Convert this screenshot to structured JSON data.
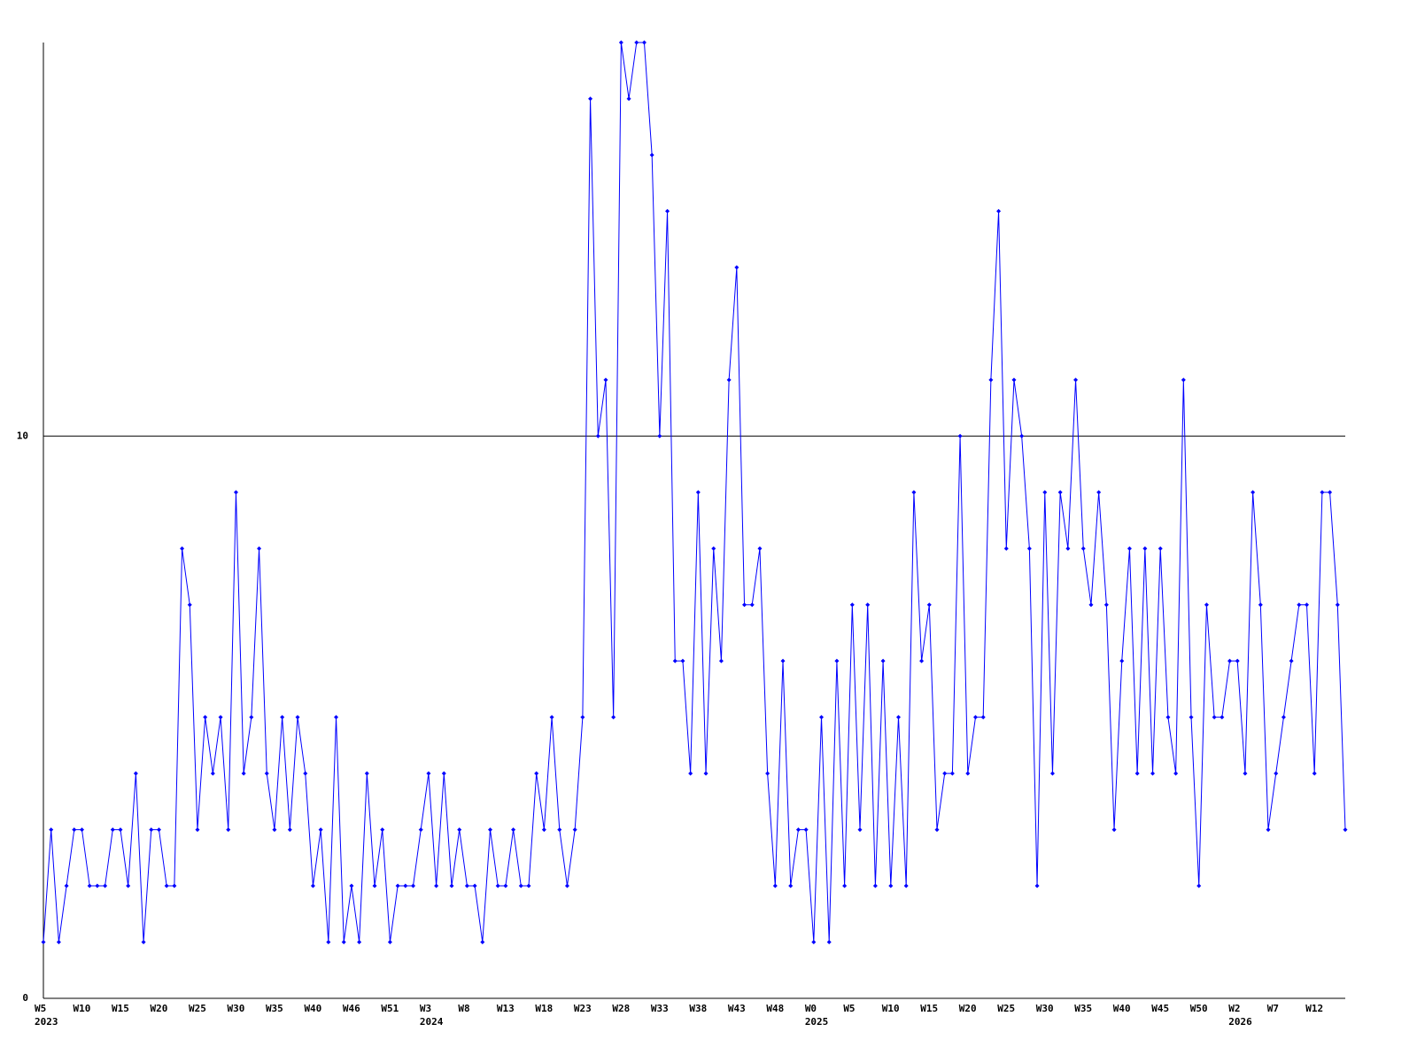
{
  "chart_data": {
    "type": "line",
    "categories": [
      "W5",
      null,
      null,
      null,
      null,
      "W10",
      null,
      null,
      null,
      null,
      "W15",
      null,
      null,
      null,
      null,
      "W20",
      null,
      null,
      null,
      null,
      "W25",
      null,
      null,
      null,
      null,
      "W30",
      null,
      null,
      null,
      null,
      "W35",
      null,
      null,
      null,
      null,
      "W40",
      null,
      null,
      null,
      null,
      "W46",
      null,
      null,
      null,
      null,
      "W51",
      null,
      null,
      null,
      null,
      "W3",
      null,
      null,
      null,
      null,
      "W8",
      null,
      null,
      null,
      null,
      "W13",
      null,
      null,
      null,
      null,
      "W18",
      null,
      null,
      null,
      null,
      "W23",
      null,
      null,
      null,
      null,
      "W28",
      null,
      null,
      null,
      null,
      "W33",
      null,
      null,
      null,
      null,
      "W38",
      null,
      null,
      null,
      null,
      "W43",
      null,
      null,
      null,
      null,
      "W48",
      null,
      null,
      null,
      null,
      "W0",
      null,
      null,
      null,
      null,
      "W5",
      null,
      null,
      null,
      null,
      "W10",
      null,
      null,
      null,
      null,
      "W15",
      null,
      null,
      null,
      null,
      "W20",
      null,
      null,
      null,
      null,
      "W25",
      null,
      null,
      null,
      null,
      "W30",
      null,
      null,
      null,
      null,
      "W35",
      null,
      null,
      null,
      null,
      "W40",
      null,
      null,
      null,
      null,
      "W45",
      null,
      null,
      null,
      null,
      "W50",
      null,
      null,
      null,
      null,
      "W2",
      null,
      null,
      null,
      null,
      "W7",
      null,
      null,
      null,
      null,
      "W12",
      null,
      null,
      null,
      null
    ],
    "years": [
      "2023",
      null,
      null,
      null,
      null,
      null,
      null,
      null,
      null,
      null,
      null,
      null,
      null,
      null,
      null,
      null,
      null,
      null,
      null,
      null,
      null,
      null,
      null,
      null,
      null,
      null,
      null,
      null,
      null,
      null,
      null,
      null,
      null,
      null,
      null,
      null,
      null,
      null,
      null,
      null,
      null,
      null,
      null,
      null,
      null,
      null,
      null,
      null,
      null,
      null,
      "2024",
      null,
      null,
      null,
      null,
      null,
      null,
      null,
      null,
      null,
      null,
      null,
      null,
      null,
      null,
      null,
      null,
      null,
      null,
      null,
      null,
      null,
      null,
      null,
      null,
      null,
      null,
      null,
      null,
      null,
      null,
      null,
      null,
      null,
      null,
      null,
      null,
      null,
      null,
      null,
      null,
      null,
      null,
      null,
      null,
      null,
      null,
      null,
      null,
      null,
      "2025",
      null,
      null,
      null,
      null,
      null,
      null,
      null,
      null,
      null,
      null,
      null,
      null,
      null,
      null,
      null,
      null,
      null,
      null,
      null,
      null,
      null,
      null,
      null,
      null,
      null,
      null,
      null,
      null,
      null,
      null,
      null,
      null,
      null,
      null,
      null,
      null,
      null,
      null,
      null,
      null,
      null,
      null,
      null,
      null,
      null,
      null,
      null,
      null,
      null,
      null,
      null,
      null,
      null,
      null,
      "2026",
      null,
      null,
      null,
      null,
      null,
      null,
      null,
      null,
      null,
      null,
      null,
      null,
      null,
      null
    ],
    "values": [
      1,
      3,
      1,
      2,
      3,
      3,
      2,
      2,
      2,
      3,
      3,
      2,
      4,
      1,
      3,
      3,
      2,
      2,
      8,
      7,
      3,
      5,
      4,
      5,
      3,
      9,
      4,
      5,
      8,
      4,
      3,
      5,
      3,
      5,
      4,
      2,
      3,
      1,
      5,
      1,
      2,
      1,
      4,
      2,
      3,
      1,
      2,
      2,
      2,
      3,
      4,
      2,
      4,
      2,
      3,
      2,
      2,
      1,
      3,
      2,
      2,
      3,
      2,
      2,
      4,
      3,
      5,
      3,
      2,
      3,
      5,
      16,
      10,
      11,
      5,
      17,
      16,
      17,
      17,
      15,
      10,
      14,
      6,
      6,
      4,
      9,
      4,
      8,
      6,
      11,
      13,
      7,
      7,
      8,
      4,
      2,
      6,
      2,
      3,
      3,
      1,
      5,
      1,
      6,
      2,
      7,
      3,
      7,
      2,
      6,
      2,
      5,
      2,
      9,
      6,
      7,
      3,
      4,
      4,
      10,
      4,
      5,
      5,
      11,
      14,
      8,
      11,
      10,
      8,
      2,
      9,
      4,
      9,
      8,
      11,
      8,
      7,
      9,
      7,
      3,
      6,
      8,
      4,
      8,
      4,
      8,
      5,
      4,
      11,
      5,
      2,
      7,
      5,
      5,
      6,
      6,
      4,
      9,
      7,
      3,
      4,
      5,
      6,
      7,
      7,
      4,
      9,
      9,
      7,
      3
    ],
    "color": "#0000ff",
    "ylim": [
      0,
      17
    ],
    "yticks": [
      0,
      10
    ],
    "grid": true
  }
}
